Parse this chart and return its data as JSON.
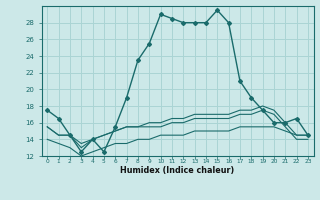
{
  "title": "",
  "xlabel": "Humidex (Indice chaleur)",
  "bg_color": "#cce8e8",
  "line_color": "#1a6b6b",
  "grid_color": "#aad4d4",
  "x_main": [
    0,
    1,
    2,
    3,
    4,
    5,
    6,
    7,
    8,
    9,
    10,
    11,
    12,
    13,
    14,
    15,
    16,
    17,
    18,
    19,
    20,
    21,
    22,
    23
  ],
  "y_main": [
    17.5,
    16.5,
    14.5,
    12.5,
    14.0,
    12.5,
    15.5,
    19.0,
    23.5,
    25.5,
    29.0,
    28.5,
    28.0,
    28.0,
    28.0,
    29.5,
    28.0,
    21.0,
    19.0,
    17.5,
    16.0,
    16.0,
    16.5,
    14.5
  ],
  "y_line2": [
    15.5,
    14.5,
    14.5,
    13.5,
    14.0,
    14.5,
    15.0,
    15.5,
    15.5,
    16.0,
    16.0,
    16.5,
    16.5,
    17.0,
    17.0,
    17.0,
    17.0,
    17.5,
    17.5,
    18.0,
    17.5,
    16.0,
    14.5,
    14.5
  ],
  "y_line3": [
    15.5,
    14.5,
    14.5,
    13.0,
    14.0,
    14.5,
    15.0,
    15.5,
    15.5,
    15.5,
    15.5,
    16.0,
    16.0,
    16.5,
    16.5,
    16.5,
    16.5,
    17.0,
    17.0,
    17.5,
    17.0,
    15.5,
    14.0,
    14.0
  ],
  "y_line4": [
    14.0,
    13.5,
    13.0,
    12.0,
    12.5,
    13.0,
    13.5,
    13.5,
    14.0,
    14.0,
    14.5,
    14.5,
    14.5,
    15.0,
    15.0,
    15.0,
    15.0,
    15.5,
    15.5,
    15.5,
    15.5,
    15.0,
    14.5,
    14.5
  ],
  "ylim": [
    12,
    30
  ],
  "xlim": [
    -0.5,
    23.5
  ],
  "yticks": [
    12,
    14,
    16,
    18,
    20,
    22,
    24,
    26,
    28
  ],
  "xticks": [
    0,
    1,
    2,
    3,
    4,
    5,
    6,
    7,
    8,
    9,
    10,
    11,
    12,
    13,
    14,
    15,
    16,
    17,
    18,
    19,
    20,
    21,
    22,
    23
  ],
  "xtick_labels": [
    "0",
    "1",
    "2",
    "3",
    "4",
    "5",
    "6",
    "7",
    "8",
    "9",
    "10",
    "11",
    "12",
    "13",
    "14",
    "15",
    "16",
    "17",
    "18",
    "19",
    "20",
    "21",
    "22",
    "23"
  ]
}
